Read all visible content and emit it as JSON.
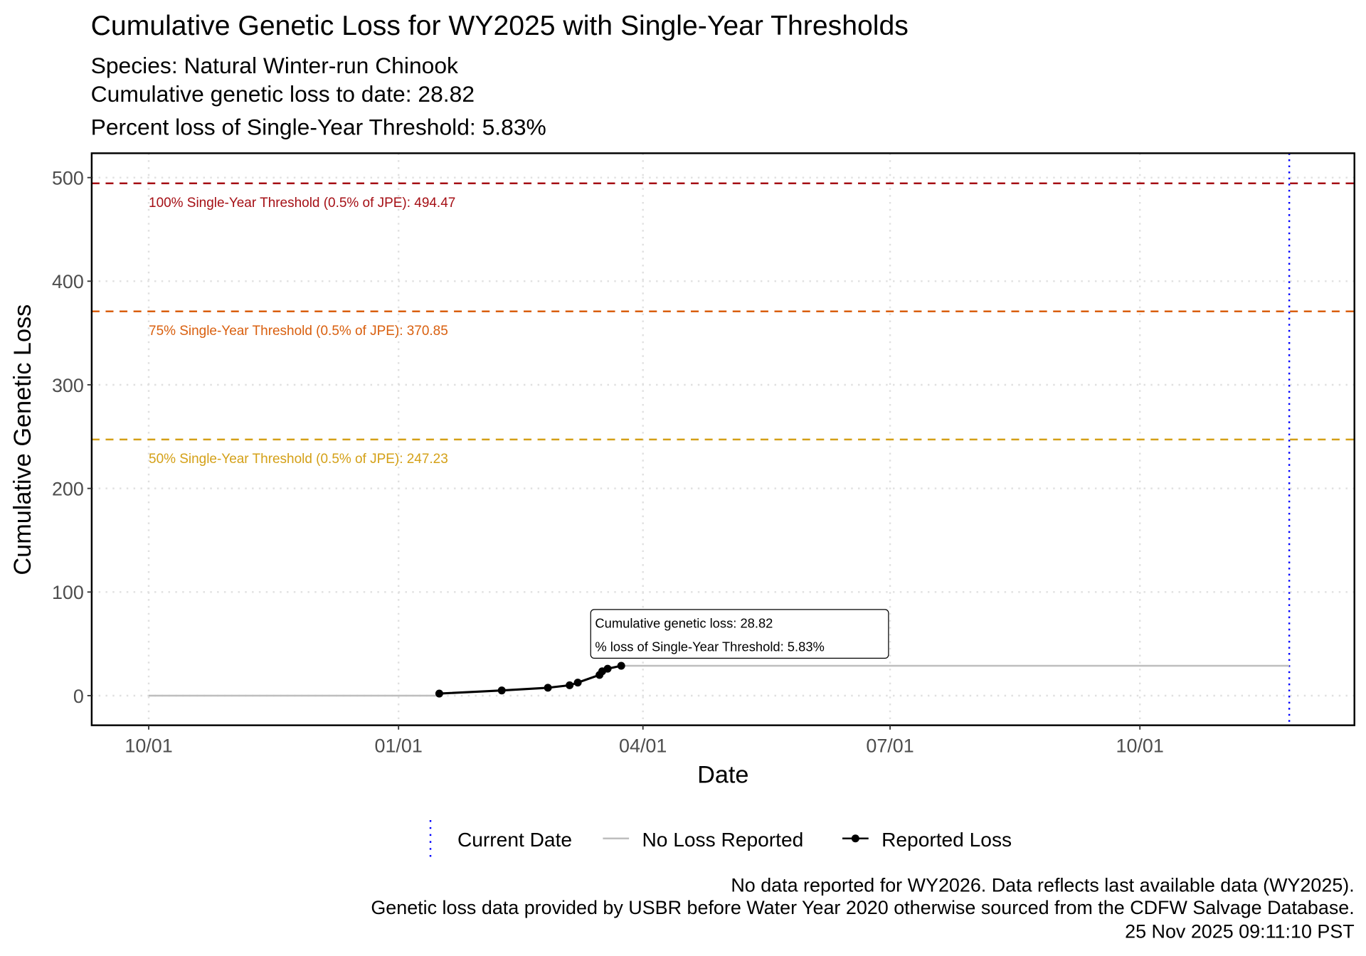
{
  "chart_data": {
    "type": "line",
    "title": "Cumulative Genetic Loss for WY2025 with Single-Year Thresholds",
    "subtitle_lines": [
      "Species: Natural Winter-run Chinook",
      "Cumulative genetic loss to date: 28.82",
      "Percent loss of Single-Year Threshold: 5.83%"
    ],
    "xlabel": "Date",
    "ylabel": "Cumulative Genetic Loss",
    "x_start_date": "2024-10-01",
    "xlim_days": [
      -21,
      444
    ],
    "ylim": [
      -28.6,
      523.5
    ],
    "x_ticks": [
      {
        "day": 0,
        "label": "10/01"
      },
      {
        "day": 92,
        "label": "01/01"
      },
      {
        "day": 182,
        "label": "04/01"
      },
      {
        "day": 273,
        "label": "07/01"
      },
      {
        "day": 365,
        "label": "10/01"
      }
    ],
    "y_ticks": [
      0,
      100,
      200,
      300,
      400,
      500
    ],
    "grid": true,
    "thresholds": [
      {
        "value": 494.47,
        "label": "100% Single-Year Threshold (0.5% of JPE): 494.47",
        "color": "#a50f15"
      },
      {
        "value": 370.85,
        "label": "75% Single-Year Threshold (0.5% of JPE): 370.85",
        "color": "#d95f0e"
      },
      {
        "value": 247.23,
        "label": "50% Single-Year Threshold (0.5% of JPE): 247.23",
        "color": "#d4a017"
      }
    ],
    "current_date_day": 420,
    "no_loss_segments": [
      {
        "x": [
          0,
          107
        ],
        "y": [
          0,
          0
        ]
      },
      {
        "x": [
          174,
          420
        ],
        "y": [
          28.82,
          28.82
        ]
      }
    ],
    "series": [
      {
        "name": "Reported Loss",
        "x_days": [
          107,
          130,
          147,
          155,
          158,
          166,
          167,
          169,
          174
        ],
        "y": [
          2.0,
          5.0,
          7.6,
          10.0,
          12.6,
          20.0,
          23.5,
          26.0,
          28.82
        ]
      }
    ],
    "annotation": {
      "line1": "Cumulative genetic loss: 28.82",
      "line2": "% loss of Single-Year Threshold: 5.83%"
    },
    "legend": {
      "placement": "bottom",
      "items": [
        {
          "label": "Current Date",
          "color": "#0000ff"
        },
        {
          "label": "No Loss Reported",
          "color": "#bebebe"
        },
        {
          "label": "Reported Loss",
          "color": "#000000"
        }
      ]
    },
    "captions": [
      "No data reported for WY2026. Data reflects last available data (WY2025).",
      "Genetic loss data provided by USBR before Water Year 2020 otherwise sourced from the CDFW Salvage Database.",
      "25 Nov 2025 09:11:10 PST"
    ]
  }
}
